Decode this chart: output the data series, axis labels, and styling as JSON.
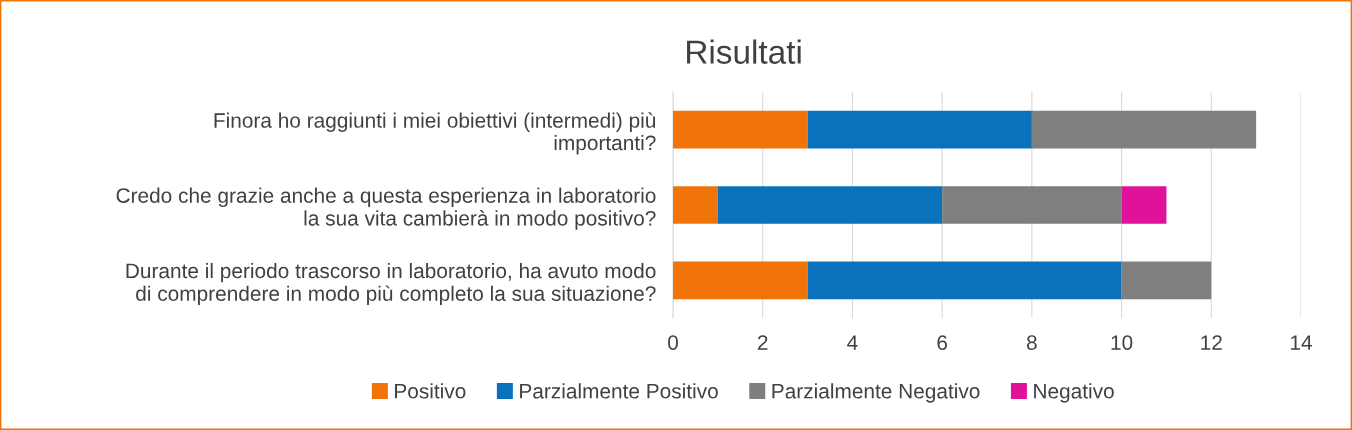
{
  "chart_data": {
    "type": "bar",
    "orientation": "horizontal",
    "stacked": true,
    "title": "Risultati",
    "categories": [
      "Finora ho raggiunti i miei obiettivi (intermedi) più\nimportanti?",
      "Credo che grazie anche a questa esperienza in laboratorio\nla sua vita cambierà in modo positivo?",
      "Durante il periodo trascorso in laboratorio, ha avuto modo\ndi comprendere in modo più completo la sua situazione?"
    ],
    "series": [
      {
        "name": "Positivo",
        "color": "#f07408",
        "values": [
          3,
          1,
          3
        ]
      },
      {
        "name": "Parzialmente Positivo",
        "color": "#0a72bd",
        "values": [
          5,
          5,
          7
        ]
      },
      {
        "name": "Parzialmente Negativo",
        "color": "#7f7f7f",
        "values": [
          5,
          4,
          2
        ]
      },
      {
        "name": "Negativo",
        "color": "#e0129a",
        "values": [
          null,
          1,
          null
        ]
      }
    ],
    "xlim": [
      0,
      14
    ],
    "xticks": [
      0,
      2,
      4,
      6,
      8,
      10,
      12,
      14
    ],
    "grid": "x",
    "legend": "bottom"
  }
}
